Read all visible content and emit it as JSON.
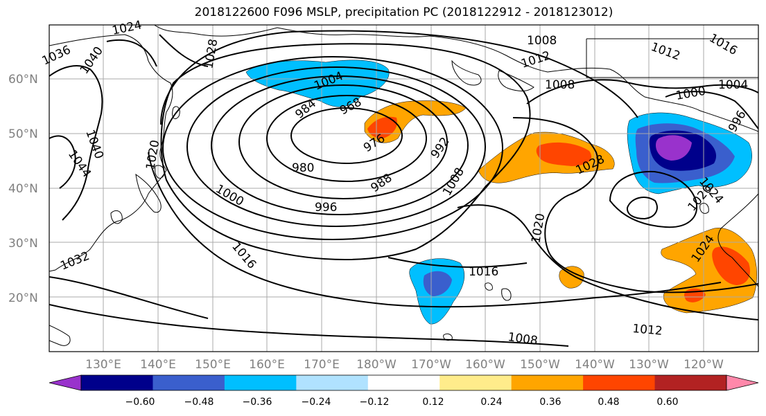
{
  "title": "2018122600 F096 MSLP, precipitation PC (2018122912 - 2018123012)",
  "lat_labels": [
    "60°N",
    "50°N",
    "40°N",
    "30°N",
    "20°N"
  ],
  "lon_labels": [
    "130°E",
    "140°E",
    "150°E",
    "160°E",
    "170°E",
    "180°W",
    "170°W",
    "160°W",
    "150°W",
    "140°W",
    "130°W",
    "120°W"
  ],
  "contour_labels": [
    "1024",
    "1028",
    "1036",
    "1040",
    "1040",
    "1044",
    "1020",
    "1032",
    "1016",
    "1000",
    "984",
    "1004",
    "968",
    "976",
    "980",
    "996",
    "988",
    "992",
    "1008",
    "1008",
    "1012",
    "1008",
    "1016",
    "1012",
    "1000",
    "1004",
    "996",
    "1028",
    "1020",
    "1016",
    "1012",
    "1008",
    "1024",
    "1020",
    "1024"
  ],
  "colorbar": {
    "ticks": [
      "−0.60",
      "−0.48",
      "−0.36",
      "−0.24",
      "−0.12",
      "0.12",
      "0.24",
      "0.36",
      "0.48",
      "0.60"
    ],
    "colors": [
      "#9932CC",
      "#00008B",
      "#3A5FCD",
      "#00BFFF",
      "#B0E2FF",
      "#FFFFFF",
      "#FFEC8B",
      "#FFA500",
      "#FF4500",
      "#B22222",
      "#FF88AA"
    ]
  }
}
